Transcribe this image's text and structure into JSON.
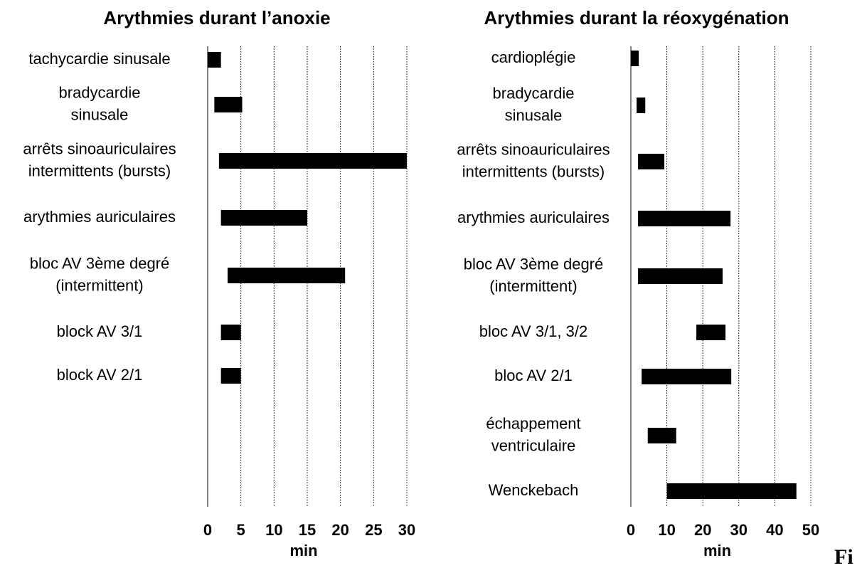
{
  "chart_data": [
    {
      "type": "range-bar",
      "title": "Arythmies durant l’anoxie",
      "categories": [
        [
          "tachycardie sinusale"
        ],
        [
          "bradycardie",
          "sinusale"
        ],
        [
          "arrêts sinoauriculaires",
          "intermittents (bursts)"
        ],
        [
          "arythmies auriculaires"
        ],
        [
          "bloc AV 3ème degré",
          "(intermittent)"
        ],
        [
          "block AV 3/1"
        ],
        [
          "block AV 2/1"
        ]
      ],
      "values": [
        [
          0,
          2
        ],
        [
          1,
          5.2
        ],
        [
          1.7,
          30
        ],
        [
          2,
          15
        ],
        [
          3,
          20.7
        ],
        [
          2,
          5
        ],
        [
          2,
          5
        ]
      ],
      "color": "#000000",
      "xlabel": "min",
      "xlim": [
        0,
        30
      ],
      "xticks": [
        0,
        5,
        10,
        15,
        20,
        25,
        30
      ],
      "grid": true
    },
    {
      "type": "range-bar",
      "title": "Arythmies durant la réoxygénation",
      "categories": [
        [
          "cardioplégie"
        ],
        [
          "bradycardie",
          "sinusale"
        ],
        [
          "arrêts sinoauriculaires",
          "intermittents (bursts)"
        ],
        [
          "arythmies auriculaires"
        ],
        [
          "bloc AV 3ème degré",
          "(intermittent)"
        ],
        [
          "bloc AV 3/1, 3/2"
        ],
        [
          "bloc AV 2/1"
        ],
        [
          "échappement",
          "ventriculaire"
        ],
        [
          "Wenckebach"
        ]
      ],
      "values": [
        [
          0,
          2.2
        ],
        [
          1.6,
          4
        ],
        [
          2,
          9.3
        ],
        [
          2,
          27.7
        ],
        [
          2,
          25.5
        ],
        [
          18.2,
          26.3
        ],
        [
          3,
          27.9
        ],
        [
          4.7,
          12.6
        ],
        [
          10,
          46
        ]
      ],
      "color": "#000000",
      "xlabel": "min",
      "xlim": [
        0,
        50
      ],
      "xticks": [
        0,
        10,
        20,
        30,
        40,
        50
      ],
      "grid": true
    }
  ],
  "fragment": "Fi"
}
